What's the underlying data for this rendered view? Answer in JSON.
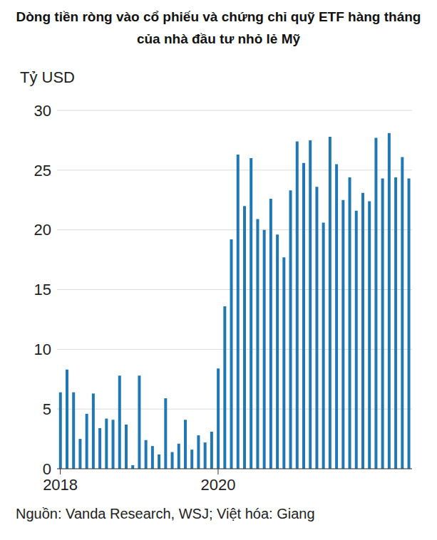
{
  "chart_data": {
    "type": "bar",
    "title": "Dòng tiền ròng vào cổ phiếu và chứng chỉ quỹ ETF hàng tháng của nhà đầu tư nhỏ lẻ Mỹ",
    "y_label": "Tỷ USD",
    "source": "Nguồn: Vanda Research, WSJ; Việt hóa: Giang",
    "categories": [
      "2018",
      null,
      null,
      null,
      null,
      null,
      null,
      null,
      null,
      null,
      null,
      null,
      null,
      null,
      null,
      null,
      null,
      null,
      null,
      null,
      null,
      null,
      null,
      null,
      "2020",
      null,
      null,
      null,
      null,
      null,
      null,
      null,
      null,
      null,
      null,
      null,
      null,
      null,
      null,
      null,
      null,
      null,
      null,
      null,
      null,
      null,
      null,
      null,
      null,
      null,
      null,
      null,
      null,
      null
    ],
    "values": [
      6.4,
      8.3,
      6.4,
      2.5,
      4.6,
      6.3,
      3.4,
      4.2,
      4.1,
      7.8,
      3.7,
      0.3,
      7.8,
      2.4,
      1.9,
      1.2,
      5.9,
      1.4,
      2.1,
      4.1,
      1.6,
      2.8,
      2.2,
      3.1,
      8.4,
      13.6,
      19.2,
      26.3,
      22.0,
      26.0,
      20.9,
      20.0,
      22.6,
      19.6,
      17.7,
      23.3,
      27.4,
      25.6,
      27.5,
      23.6,
      20.6,
      27.8,
      25.5,
      22.5,
      24.4,
      21.6,
      23.1,
      22.4,
      27.7,
      24.3,
      28.1,
      24.4,
      26.1,
      24.3
    ],
    "color": "#1f78b4",
    "ylim": [
      0,
      30
    ],
    "yticks": [
      0,
      5,
      10,
      15,
      20,
      25,
      30
    ],
    "grid": true
  }
}
